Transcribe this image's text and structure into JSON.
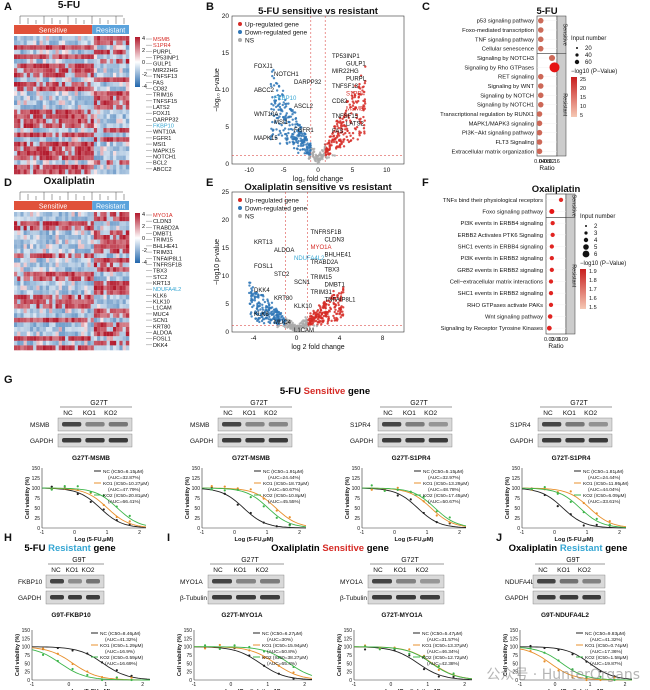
{
  "panels": {
    "A": {
      "letter": "A",
      "title": "5-FU",
      "group_left": "Sensitive",
      "group_right": "Resistant",
      "genes": [
        "MSMB",
        "S1PR4",
        "PURPL",
        "TP53INP1",
        "GULP1",
        "MIR22HG",
        "TNFSF13",
        "FAS",
        "CD82",
        "TRIM16",
        "TNFSF15",
        "LATS2",
        "FOXJ1",
        "DARPP32",
        "FKBP10",
        "WNT10A",
        "FGFR1",
        "MSI1",
        "MAPK15",
        "NOTCH1",
        "BCL2",
        "ABCC2"
      ],
      "highlight_red": [
        "MSMB",
        "S1PR4"
      ],
      "highlight_blue": [
        "FKBP10"
      ],
      "legend_ticks": [
        "4",
        "2",
        "0",
        "-2",
        "-4"
      ]
    },
    "D": {
      "letter": "D",
      "title": "Oxaliplatin",
      "group_left": "Sensitive",
      "group_right": "Resistant",
      "genes": [
        "MYO1A",
        "CLDN3",
        "TRABD2A",
        "DMBT1",
        "TRIM15",
        "BHLHE41",
        "TRIM31",
        "TNFAIP8L1",
        "TNFRSF1B",
        "TBX3",
        "STC2",
        "KRT13",
        "NDUFA4L2",
        "KLK6",
        "KLK10",
        "L1CAM",
        "MUC4",
        "SCN1",
        "KRT80",
        "ALDOA",
        "FOSL1",
        "DKK4"
      ],
      "highlight_red": [
        "MYO1A"
      ],
      "highlight_blue": [
        "NDUFA4L2"
      ],
      "legend_ticks": [
        "4",
        "2",
        "0",
        "-2",
        "-4"
      ]
    },
    "B": {
      "letter": "B",
      "title": "5-FU sensitive vs resistant",
      "legend": [
        "Up-regulated gene",
        "Down-regulated gene",
        "NS"
      ],
      "xlabel": "log₂ fold change",
      "ylabel": "−log₁₀ p-value",
      "xticks": [
        "-10",
        "-5",
        "0",
        "5",
        "10"
      ],
      "yticks": [
        "0",
        "5",
        "10",
        "15",
        "20"
      ],
      "labels_left": [
        "FOXJ1",
        "NOTCH1",
        "DARPP32",
        "ABCC2",
        "FKBP10",
        "ASCL2",
        "WNT10A",
        "MSI1",
        "FGFR1",
        "MAPK15"
      ],
      "labels_right": [
        "TP53INP1",
        "GULP1",
        "MIR22HG",
        "PURPL",
        "TNFSF13",
        "S1PR4",
        "CD82",
        "MSMB",
        "TNFSF15",
        "LATS2",
        "FAS"
      ]
    },
    "E": {
      "letter": "E",
      "title": "Oxaliplatin sensitive vs resistant",
      "legend": [
        "Up-regulated gene",
        "Down-regulated gene",
        "NS"
      ],
      "xlabel": "log 2 fold change",
      "ylabel": "−log10 p-value",
      "xticks": [
        "-4",
        "0",
        "4",
        "8"
      ],
      "yticks": [
        "0",
        "5",
        "10",
        "15",
        "20",
        "25"
      ],
      "labels_left": [
        "KRT13",
        "ALDOA",
        "NDUFA4L2",
        "FOSL1",
        "STC2",
        "SCN1",
        "DKK4",
        "KRT80",
        "KLK10",
        "KLK6",
        "MUC4",
        "L1CAM"
      ],
      "labels_right": [
        "TNFRSF1B",
        "CLDN3",
        "MYO1A",
        "BHLHE41",
        "TRABD2A",
        "TBX3",
        "TRIM15",
        "DMBT1",
        "TRIM31",
        "TNFAIP8L1"
      ]
    },
    "C": {
      "letter": "C",
      "title": "5-FU",
      "sens_terms": [
        "p53 signaling pathway",
        "Foxo-mediated transcription",
        "TNF signaling pathway",
        "Cellular senescence"
      ],
      "res_terms": [
        "Signaling by NOTCH3",
        "Signaling by Rho GTPases",
        "RET signaling",
        "Signaling by WNT",
        "Signaling by NOTCH",
        "Signaling by NOTCH1",
        "Transcriptional regulation by RUNX1",
        "MAPK1/MAPK3 signaling",
        "PI3K−Akt signaling pathway",
        "FLT3 Signaling",
        "Extracellular matrix organization"
      ],
      "strip_sens": "Sensitive",
      "strip_res": "Resistant",
      "xlabel": "Ratio",
      "xticks": [
        "0.04",
        "0.08",
        "0.12",
        "0.16"
      ],
      "size_title": "Input number",
      "size_labels": [
        "20",
        "40",
        "60"
      ],
      "color_title": "−log10 (P−Value)",
      "color_ticks": [
        "25",
        "20",
        "15",
        "10",
        "5"
      ],
      "sens_points": [
        {
          "ratio": 0.05,
          "n": 8,
          "lp": 3
        },
        {
          "ratio": 0.05,
          "n": 8,
          "lp": 3
        },
        {
          "ratio": 0.05,
          "n": 8,
          "lp": 3
        },
        {
          "ratio": 0.05,
          "n": 8,
          "lp": 3
        }
      ],
      "res_points": [
        {
          "ratio": 0.14,
          "n": 12,
          "lp": 4
        },
        {
          "ratio": 0.16,
          "n": 60,
          "lp": 25
        },
        {
          "ratio": 0.05,
          "n": 8,
          "lp": 4
        },
        {
          "ratio": 0.05,
          "n": 8,
          "lp": 4
        },
        {
          "ratio": 0.05,
          "n": 8,
          "lp": 4
        },
        {
          "ratio": 0.05,
          "n": 8,
          "lp": 4
        },
        {
          "ratio": 0.04,
          "n": 8,
          "lp": 4
        },
        {
          "ratio": 0.04,
          "n": 8,
          "lp": 4
        },
        {
          "ratio": 0.04,
          "n": 8,
          "lp": 4
        },
        {
          "ratio": 0.04,
          "n": 8,
          "lp": 4
        },
        {
          "ratio": 0.04,
          "n": 8,
          "lp": 4
        }
      ]
    },
    "F": {
      "letter": "F",
      "title": "Oxaliplatin",
      "sens_terms": [
        "TNFs bind their physiological receptors",
        "Foxo signaling pathway"
      ],
      "res_terms": [
        "PI3K events in ERBB4 signaling",
        "ERBB2 Activates PTK6 Signaling",
        "SHC1 events in ERBB4 signaling",
        "PI3K events in ERBB2 signaling",
        "GRB2 events in ERBB2 signaling",
        "Cell−extracellular matrix interactions",
        "SHC1 events in ERBB2 signaling",
        "RHO GTPases activate PAKs",
        "Wnt signaling pathway",
        "Signaling by Receptor Tyrosine Kinases"
      ],
      "strip_sens": "Sensitive",
      "strip_res": "Resistant",
      "xlabel": "Ratio",
      "xticks": [
        "0.03",
        "0.06",
        "0.09"
      ],
      "size_title": "Input number",
      "size_labels": [
        "2",
        "3",
        "4",
        "5",
        "6"
      ],
      "color_title": "−log10 (P−Value)",
      "color_ticks": [
        "1.9",
        "1.8",
        "1.7",
        "1.6",
        "1.5"
      ],
      "sens_points": [
        {
          "ratio": 0.09,
          "n": 2,
          "lp": 1.5
        },
        {
          "ratio": 0.035,
          "n": 5,
          "lp": 1.9
        }
      ],
      "res_points": [
        {
          "ratio": 0.04,
          "n": 2,
          "lp": 1.6
        },
        {
          "ratio": 0.04,
          "n": 2,
          "lp": 1.6
        },
        {
          "ratio": 0.035,
          "n": 2,
          "lp": 1.6
        },
        {
          "ratio": 0.035,
          "n": 2,
          "lp": 1.6
        },
        {
          "ratio": 0.035,
          "n": 2,
          "lp": 1.6
        },
        {
          "ratio": 0.03,
          "n": 2,
          "lp": 1.6
        },
        {
          "ratio": 0.03,
          "n": 2,
          "lp": 1.6
        },
        {
          "ratio": 0.03,
          "n": 2,
          "lp": 1.6
        },
        {
          "ratio": 0.025,
          "n": 3,
          "lp": 1.6
        },
        {
          "ratio": 0.02,
          "n": 4,
          "lp": 1.6
        }
      ]
    },
    "G": {
      "letter": "G",
      "title_prefix": "5-FU ",
      "title_mid": "Sensitive",
      "title_suffix": " gene",
      "xlabel": "Log (5-FU,μM)",
      "ylabel": "Cell viability (%)",
      "blots": [
        {
          "line": "G27T",
          "lanes": [
            "NC",
            "KO1",
            "KO2"
          ],
          "rows": [
            "MSMB",
            "GAPDH"
          ],
          "caption": "G27T-MSMB"
        },
        {
          "line": "G72T",
          "lanes": [
            "NC",
            "KO1",
            "KO2"
          ],
          "rows": [
            "MSMB",
            "GAPDH"
          ],
          "caption": "G72T-MSMB"
        },
        {
          "line": "G27T",
          "lanes": [
            "NC",
            "KO1",
            "KO2"
          ],
          "rows": [
            "S1PR4",
            "GAPDH"
          ],
          "caption": "G27T-S1PR4"
        },
        {
          "line": "G72T",
          "lanes": [
            "NC",
            "KO1",
            "KO2"
          ],
          "rows": [
            "S1PR4",
            "GAPDH"
          ],
          "caption": "G72T-S1PR4"
        }
      ],
      "curves": [
        {
          "legend": [
            [
              "NC (IC50=6.15μM)",
              "(AUC=32.87%)"
            ],
            [
              "KO1 (IC50=10.27μM)",
              "(AUC=47.79%)"
            ],
            [
              "KO2 (IC50=20.81μM)",
              "(AUC=66.41%)"
            ]
          ],
          "ic50": [
            6.15,
            10.27,
            20.81
          ]
        },
        {
          "legend": [
            [
              "NC (IC50=1.91μM)",
              "(AUC=24.44%)"
            ],
            [
              "KO1 (IC50=18.73μM)",
              "(AUC=50.67%)"
            ],
            [
              "KO2 (IC50=10.8μM)",
              "(AUC=45.55%)"
            ]
          ],
          "ic50": [
            1.91,
            18.73,
            10.8
          ]
        },
        {
          "legend": [
            [
              "NC (IC50=5.15μM)",
              "(AUC=32.97%)"
            ],
            [
              "KO1 (IC50=13.29μM)",
              "(AUC=48.78%)"
            ],
            [
              "KO2 (IC50=17.45μM)",
              "(AUC=50.67%)"
            ]
          ],
          "ic50": [
            5.15,
            13.29,
            17.45
          ]
        },
        {
          "legend": [
            [
              "NC (IC50=1.81μM)",
              "(AUC=24.44%)"
            ],
            [
              "KO1 (IC50=11.95μM)",
              "(AUC=44.04%)"
            ],
            [
              "KO2 (IC50=6.09μM)",
              "(AUC=33.61%)"
            ]
          ],
          "ic50": [
            1.81,
            11.95,
            6.09
          ]
        }
      ]
    },
    "H": {
      "letter": "H",
      "title_prefix": "5-FU ",
      "title_mid": "Resistant",
      "title_suffix": " gene",
      "xlabel": "Log (5-FU,μM)",
      "ylabel": "Cell viability (%)",
      "blots": [
        {
          "line": "G9T",
          "lanes": [
            "NC",
            "KO1",
            "KO2"
          ],
          "rows": [
            "FKBP10",
            "GAPDH"
          ],
          "caption": "G9T-FKBP10"
        }
      ],
      "curves": [
        {
          "legend": [
            [
              "NC (IC50=8.46μM)",
              "(AUC=41.32%)"
            ],
            [
              "KO1 (IC50=1.29μM)",
              "(AUC=16.9%)"
            ],
            [
              "KO2 (IC50=0.59μM)",
              "(AUC=16.69%)"
            ]
          ],
          "ic50": [
            8.46,
            1.29,
            0.59
          ]
        }
      ]
    },
    "I": {
      "letter": "I",
      "title_prefix": "Oxaliplatin ",
      "title_mid": "Sensitive",
      "title_suffix": " gene",
      "xlabel": "Log (Oxaliplatin,μM)",
      "ylabel": "Cell viability (%)",
      "blots": [
        {
          "line": "G27T",
          "lanes": [
            "NC",
            "KO1",
            "KO2"
          ],
          "rows": [
            "MYO1A",
            "β-Tubulin"
          ],
          "caption": "G27T-MYO1A"
        },
        {
          "line": "G72T",
          "lanes": [
            "NC",
            "KO1",
            "KO2"
          ],
          "rows": [
            "MYO1A",
            "β-Tubulin"
          ],
          "caption": "G72T-MYO1A"
        }
      ],
      "curves": [
        {
          "legend": [
            [
              "NC (IC50=6.27μM)",
              "(AUC=30%)"
            ],
            [
              "KO1 (IC50=15.94μM)",
              "(AUC=50.8%)"
            ],
            [
              "KO2 (IC50=38.27μM)",
              "(AUC=65.4%)"
            ]
          ],
          "ic50": [
            6.27,
            15.94,
            38.27
          ]
        },
        {
          "legend": [
            [
              "NC (IC50=5.47μM)",
              "(AUC=31.57%)"
            ],
            [
              "KO1 (IC50=13.37μM)",
              "(AUC=46.34%)"
            ],
            [
              "KO2 (IC50=12.72μM)",
              "(AUC=42.38%)"
            ]
          ],
          "ic50": [
            5.47,
            13.37,
            12.72
          ]
        }
      ]
    },
    "J": {
      "letter": "J",
      "title_prefix": "Oxaliplatin ",
      "title_mid": "Resistant",
      "title_suffix": " gene",
      "xlabel": "Log (Oxaliplatin,μM)",
      "ylabel": "Cell viability (%)",
      "blots": [
        {
          "line": "G9T",
          "lanes": [
            "NC",
            "KO1",
            "KO2"
          ],
          "rows": [
            "NDUFA4L2",
            "GAPDH"
          ],
          "caption": "G9T-NDUFA4L2"
        }
      ],
      "curves": [
        {
          "legend": [
            [
              "NC (IC50=9.83μM)",
              "(AUC=41.32%)"
            ],
            [
              "KO1 (IC50=0.74μM)",
              "(AUC=17.36%)"
            ],
            [
              "KO2 (IC50=1.58μM)",
              "(AUC=19.87%)"
            ]
          ],
          "ic50": [
            9.83,
            0.74,
            1.58
          ]
        }
      ]
    }
  },
  "curve_axis": {
    "xticks": [
      "-1",
      "0",
      "1",
      "2"
    ],
    "yticks": [
      "0",
      "25",
      "50",
      "75",
      "100",
      "125",
      "150"
    ]
  },
  "watermark": "公众号 · HunterOrgans",
  "colors": {
    "red": "#d62b26",
    "blue": "#2e75b6",
    "teal": "#35a6d3",
    "nc": "#222222",
    "ko1": "#e8902c",
    "ko2": "#3db54a",
    "heat_hi": "#b2182b",
    "heat_lo": "#2166ac",
    "sens_bar": "#e0513a",
    "res_bar": "#5ba3dc"
  }
}
